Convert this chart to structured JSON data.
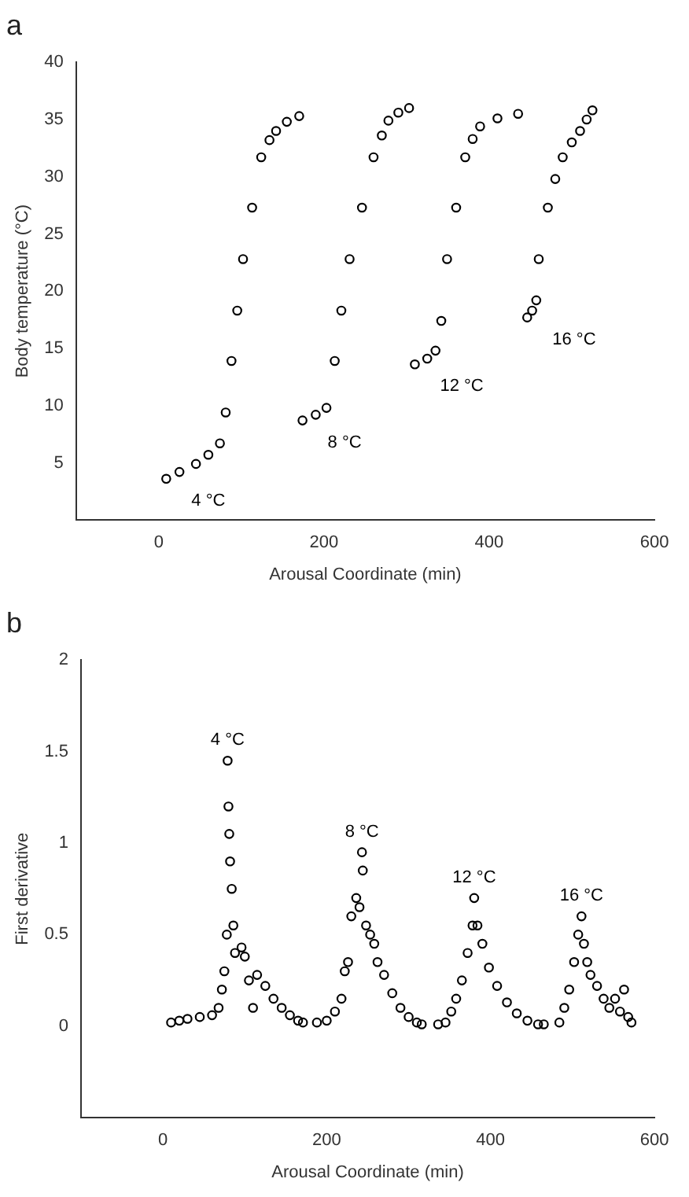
{
  "chart_data": [
    {
      "type": "scatter",
      "title": "a",
      "xlabel": "Arousal Coordinate (min)",
      "ylabel": "Body temperature (°C)",
      "xlim": [
        -100,
        600
      ],
      "xticks": [
        0,
        200,
        400,
        600
      ],
      "ylim": [
        0,
        40
      ],
      "yticks": [
        5,
        10,
        15,
        20,
        25,
        30,
        35,
        40
      ],
      "grid": false,
      "legend": false,
      "marker": "circle",
      "series": [
        {
          "name": "4 °C",
          "color": "#000000",
          "x": [
            9,
            25,
            45,
            60,
            74,
            81,
            88,
            95,
            102,
            113,
            124,
            134,
            142,
            155,
            170
          ],
          "values": [
            3.6,
            4.2,
            4.9,
            5.7,
            6.7,
            9.4,
            13.9,
            18.3,
            22.8,
            27.3,
            31.7,
            33.2,
            34,
            34.8,
            35.3
          ]
        },
        {
          "name": "8 °C",
          "color": "#000000",
          "x": [
            174,
            190,
            203,
            213,
            221,
            231,
            246,
            260,
            270,
            278,
            290,
            303
          ],
          "values": [
            8.7,
            9.2,
            9.8,
            13.9,
            18.3,
            22.8,
            27.3,
            31.7,
            33.6,
            34.9,
            35.6,
            36
          ]
        },
        {
          "name": "12 °C",
          "color": "#000000",
          "x": [
            310,
            325,
            335,
            342,
            349,
            360,
            371,
            380,
            389,
            410,
            435
          ],
          "values": [
            13.6,
            14.1,
            14.8,
            17.4,
            22.8,
            27.3,
            31.7,
            33.3,
            34.4,
            35.1,
            35.5
          ]
        },
        {
          "name": "16 °C",
          "color": "#000000",
          "x": [
            446,
            452,
            457,
            460,
            471,
            480,
            489,
            500,
            510,
            518,
            525
          ],
          "values": [
            17.7,
            18.3,
            19.2,
            22.8,
            27.3,
            29.8,
            31.7,
            33,
            34,
            35,
            35.8
          ]
        }
      ]
    },
    {
      "type": "scatter",
      "title": "b",
      "xlabel": "Arousal Coordinate (min)",
      "ylabel": "First derivative",
      "xlim": [
        -100,
        600
      ],
      "xticks": [
        0,
        200,
        400,
        600
      ],
      "ylim": [
        -0.5,
        2
      ],
      "yticks": [
        0,
        0.5,
        1,
        1.5,
        2
      ],
      "grid": false,
      "legend": false,
      "marker": "circle",
      "series": [
        {
          "name": "4 °C",
          "color": "#000000",
          "x": [
            10,
            20,
            30,
            45,
            60,
            68,
            72,
            75,
            78,
            79,
            80,
            81,
            82,
            84,
            86,
            88,
            96,
            100,
            105,
            110,
            115,
            125,
            135,
            145,
            155,
            165,
            171
          ],
          "values": [
            0.02,
            0.03,
            0.04,
            0.05,
            0.06,
            0.1,
            0.2,
            0.3,
            0.5,
            1.45,
            1.2,
            1.05,
            0.9,
            0.75,
            0.55,
            0.4,
            0.43,
            0.38,
            0.25,
            0.1,
            0.28,
            0.22,
            0.15,
            0.1,
            0.06,
            0.03,
            0.02
          ]
        },
        {
          "name": "8 °C",
          "color": "#000000",
          "x": [
            188,
            200,
            210,
            218,
            222,
            226,
            230,
            236,
            240,
            243,
            244,
            248,
            253,
            258,
            262,
            270,
            280,
            290,
            300,
            310,
            316
          ],
          "values": [
            0.02,
            0.03,
            0.08,
            0.15,
            0.3,
            0.35,
            0.6,
            0.7,
            0.65,
            0.95,
            0.85,
            0.55,
            0.5,
            0.45,
            0.35,
            0.28,
            0.18,
            0.1,
            0.05,
            0.02,
            0.01
          ]
        },
        {
          "name": "12 °C",
          "color": "#000000",
          "x": [
            336,
            345,
            352,
            358,
            365,
            372,
            378,
            380,
            384,
            390,
            398,
            408,
            420,
            432,
            445,
            458,
            465
          ],
          "values": [
            0.01,
            0.02,
            0.08,
            0.15,
            0.25,
            0.4,
            0.55,
            0.7,
            0.55,
            0.45,
            0.32,
            0.22,
            0.13,
            0.07,
            0.03,
            0.01,
            0.01
          ]
        },
        {
          "name": "16 °C",
          "color": "#000000",
          "x": [
            484,
            490,
            496,
            502,
            507,
            511,
            514,
            518,
            522,
            530,
            538,
            545,
            552,
            558,
            563,
            568,
            572
          ],
          "values": [
            0.02,
            0.1,
            0.2,
            0.35,
            0.5,
            0.6,
            0.45,
            0.35,
            0.28,
            0.22,
            0.15,
            0.1,
            0.15,
            0.08,
            0.2,
            0.05,
            0.02
          ]
        }
      ]
    }
  ]
}
